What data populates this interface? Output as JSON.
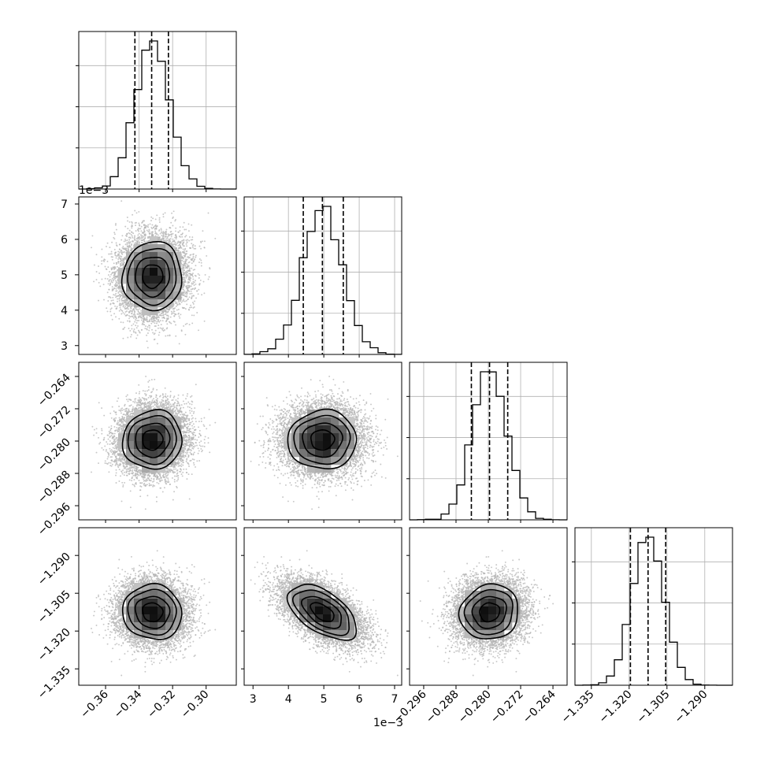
{
  "chart_data": {
    "type": "corner",
    "offset_label": "1e−3",
    "parameters": [
      {
        "range": [
          -0.376,
          -0.282
        ],
        "ticks": [
          -0.36,
          -0.34,
          -0.32,
          -0.3
        ],
        "tick_labels": [
          "−0.36",
          "−0.34",
          "−0.32",
          "−0.30"
        ],
        "mean": -0.332,
        "std": 0.0102,
        "quantiles": [
          -0.3425,
          -0.3325,
          -0.3225
        ]
      },
      {
        "range": [
          2.75,
          7.2
        ],
        "ticks": [
          3,
          4,
          5,
          6,
          7
        ],
        "tick_labels": [
          "3",
          "4",
          "5",
          "6",
          "7"
        ],
        "mean": 4.96,
        "std": 0.56,
        "quantiles": [
          4.42,
          4.96,
          5.55
        ]
      },
      {
        "range": [
          -0.2995,
          -0.2605
        ],
        "ticks": [
          -0.296,
          -0.288,
          -0.28,
          -0.272,
          -0.264
        ],
        "tick_labels": [
          "−0.296",
          "−0.288",
          "−0.280",
          "−0.272",
          "−0.264"
        ],
        "mean": -0.2797,
        "std": 0.0042,
        "quantiles": [
          -0.2842,
          -0.2797,
          -0.2752
        ]
      },
      {
        "range": [
          -1.3415,
          -1.279
        ],
        "ticks": [
          -1.335,
          -1.32,
          -1.305,
          -1.29
        ],
        "tick_labels": [
          "−1.335",
          "−1.320",
          "−1.305",
          "−1.290"
        ],
        "mean": -1.3125,
        "std": 0.0063,
        "quantiles": [
          -1.3195,
          -1.3125,
          -1.3055
        ]
      }
    ],
    "correlations": [
      [
        1,
        0.03,
        0.05,
        -0.05
      ],
      [
        0.03,
        1,
        0.02,
        -0.55
      ],
      [
        0.05,
        0.02,
        1,
        0.08
      ],
      [
        -0.05,
        -0.55,
        0.08,
        1
      ]
    ],
    "grid": true,
    "colors": {
      "line": "#000000",
      "scatter": "#b4b4b4",
      "grid": "#b0b0b0"
    }
  }
}
